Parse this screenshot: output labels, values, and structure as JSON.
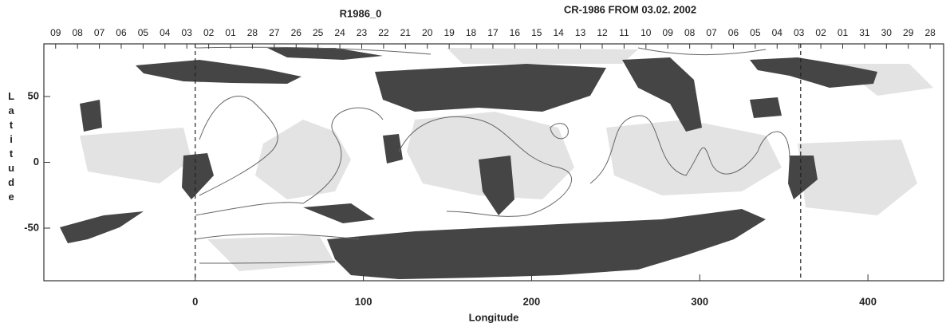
{
  "chart_data": {
    "type": "synoptic-map",
    "title": "R1986_0",
    "subtitle": "CR-1986 FROM 03.02. 2002",
    "x_label": "Longitude",
    "y_label": "Latitude",
    "xlim": [
      -90,
      445
    ],
    "ylim": [
      -90,
      90
    ],
    "xticks": [
      0,
      100,
      200,
      300,
      400
    ],
    "yticks": [
      -50,
      0,
      50
    ],
    "reference_lines": [
      0,
      360
    ],
    "top_ticks": [
      {
        "value": -83,
        "label": "09"
      },
      {
        "value": -70,
        "label": "08"
      },
      {
        "value": -57,
        "label": "07"
      },
      {
        "value": -44,
        "label": "06"
      },
      {
        "value": -31,
        "label": "05"
      },
      {
        "value": -18,
        "label": "04"
      },
      {
        "value": -5,
        "label": "03"
      },
      {
        "value": 8,
        "label": "02"
      },
      {
        "value": 21,
        "label": "01"
      },
      {
        "value": 34,
        "label": "28"
      },
      {
        "value": 47,
        "label": "27"
      },
      {
        "value": 60,
        "label": "26"
      },
      {
        "value": 73,
        "label": "25"
      },
      {
        "value": 86,
        "label": "24"
      },
      {
        "value": 99,
        "label": "23"
      },
      {
        "value": 112,
        "label": "22"
      },
      {
        "value": 125,
        "label": "21"
      },
      {
        "value": 138,
        "label": "20"
      },
      {
        "value": 151,
        "label": "19"
      },
      {
        "value": 164,
        "label": "18"
      },
      {
        "value": 177,
        "label": "17"
      },
      {
        "value": 190,
        "label": "16"
      },
      {
        "value": 203,
        "label": "15"
      },
      {
        "value": 216,
        "label": "14"
      },
      {
        "value": 229,
        "label": "13"
      },
      {
        "value": 242,
        "label": "12"
      },
      {
        "value": 255,
        "label": "11"
      },
      {
        "value": 268,
        "label": "10"
      },
      {
        "value": 281,
        "label": "09"
      },
      {
        "value": 294,
        "label": "08"
      },
      {
        "value": 307,
        "label": "07"
      },
      {
        "value": 320,
        "label": "06"
      },
      {
        "value": 333,
        "label": "05"
      },
      {
        "value": 346,
        "label": "04"
      },
      {
        "value": 359,
        "label": "03"
      },
      {
        "value": 372,
        "label": "02"
      },
      {
        "value": 385,
        "label": "01"
      },
      {
        "value": 398,
        "label": "31"
      },
      {
        "value": 411,
        "label": "30"
      },
      {
        "value": 424,
        "label": "29"
      },
      {
        "value": 437,
        "label": "28"
      }
    ]
  }
}
